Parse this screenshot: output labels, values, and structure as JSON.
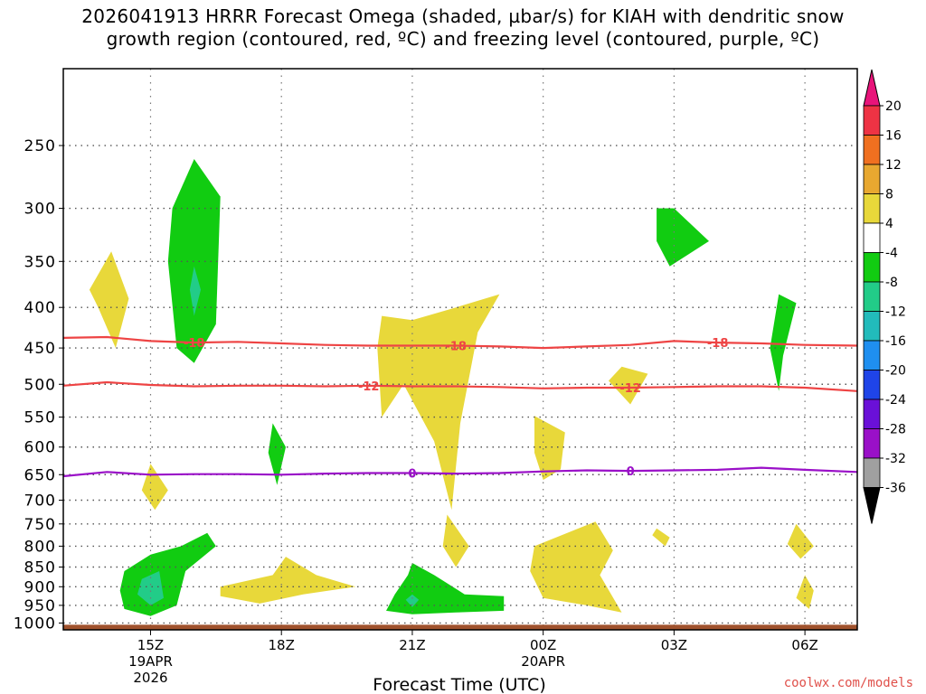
{
  "chart_data": {
    "type": "contour",
    "title_line1": "2026041913 HRRR Forecast Omega (shaded, µbar/s) for KIAH with dendritic snow",
    "title_line2": "growth region (contoured, red, ºC) and freezing level (contoured, purple, ºC)",
    "xlabel": "Forecast Time (UTC)",
    "x_ticks": [
      {
        "hour": 15,
        "label": "15Z",
        "sub": [
          "19APR",
          "2026"
        ]
      },
      {
        "hour": 18,
        "label": "18Z",
        "sub": []
      },
      {
        "hour": 21,
        "label": "21Z",
        "sub": []
      },
      {
        "hour": 24,
        "label": "00Z",
        "sub": [
          "20APR"
        ]
      },
      {
        "hour": 27,
        "label": "03Z",
        "sub": []
      },
      {
        "hour": 30,
        "label": "06Z",
        "sub": []
      }
    ],
    "xlim": [
      13,
      31.2
    ],
    "y_levels": [
      250,
      300,
      350,
      400,
      450,
      500,
      550,
      600,
      650,
      700,
      750,
      800,
      850,
      900,
      950,
      1000
    ],
    "ylim": [
      200,
      1020
    ],
    "colorbar_labels": [
      "20",
      "16",
      "12",
      "8",
      "4",
      "-4",
      "-8",
      "-12",
      "-16",
      "-20",
      "-24",
      "-28",
      "-32",
      "-36"
    ],
    "colorbar_colors": [
      "#ee3344",
      "#f07020",
      "#e8a830",
      "#e8d83a",
      "#ffffff",
      "#11cc11",
      "#22cc88",
      "#22bbbb",
      "#1f8ff0",
      "#1f44e8",
      "#6a10d8",
      "#9a10c8",
      "#a0a0a0"
    ],
    "colorbar_top_color": "#e8147a",
    "colorbar_bottom_color": "#000000",
    "temperature_contours": [
      {
        "label": "-18",
        "color": "#ee4444",
        "points": [
          [
            13,
            437
          ],
          [
            14,
            436
          ],
          [
            15,
            441
          ],
          [
            16,
            443
          ],
          [
            17,
            442
          ],
          [
            18,
            444
          ],
          [
            19,
            446
          ],
          [
            20,
            447
          ],
          [
            21,
            447
          ],
          [
            22,
            447
          ],
          [
            23,
            448
          ],
          [
            24,
            450
          ],
          [
            25,
            448
          ],
          [
            26,
            446
          ],
          [
            27,
            441
          ],
          [
            28,
            443
          ],
          [
            29,
            444
          ],
          [
            30,
            446
          ],
          [
            31.2,
            447
          ]
        ],
        "label_at": [
          [
            16,
            443
          ],
          [
            22,
            447
          ],
          [
            28,
            443
          ]
        ]
      },
      {
        "label": "-12",
        "color": "#ee4444",
        "points": [
          [
            13,
            502
          ],
          [
            14,
            497
          ],
          [
            15,
            501
          ],
          [
            16,
            503
          ],
          [
            17,
            502
          ],
          [
            18,
            502
          ],
          [
            19,
            503
          ],
          [
            20,
            502
          ],
          [
            21,
            503
          ],
          [
            22,
            503
          ],
          [
            23,
            504
          ],
          [
            24,
            506
          ],
          [
            25,
            505
          ],
          [
            26,
            505
          ],
          [
            27,
            504
          ],
          [
            28,
            503
          ],
          [
            29,
            503
          ],
          [
            30,
            505
          ],
          [
            31.2,
            510
          ]
        ],
        "label_at": [
          [
            20,
            502
          ],
          [
            26,
            505
          ]
        ]
      },
      {
        "label": "0",
        "color": "#9a10c8",
        "points": [
          [
            13,
            653
          ],
          [
            14,
            645
          ],
          [
            15,
            650
          ],
          [
            16,
            649
          ],
          [
            17,
            649
          ],
          [
            18,
            650
          ],
          [
            19,
            648
          ],
          [
            20,
            647
          ],
          [
            21,
            647
          ],
          [
            22,
            648
          ],
          [
            23,
            647
          ],
          [
            24,
            644
          ],
          [
            25,
            642
          ],
          [
            26,
            643
          ],
          [
            27,
            642
          ],
          [
            28,
            641
          ],
          [
            29,
            637
          ],
          [
            30,
            641
          ],
          [
            31.2,
            645
          ]
        ],
        "label_at": [
          [
            21,
            647
          ],
          [
            26,
            643
          ]
        ]
      }
    ],
    "omega_regions": [
      {
        "value": 5,
        "color": "#e8d83a",
        "points": [
          [
            14.1,
            340
          ],
          [
            14.5,
            390
          ],
          [
            14.2,
            450
          ],
          [
            13.8,
            400
          ],
          [
            13.6,
            380
          ]
        ]
      },
      {
        "value": -6,
        "color": "#11cc11",
        "points": [
          [
            15.5,
            300
          ],
          [
            16.0,
            260
          ],
          [
            16.6,
            290
          ],
          [
            16.5,
            420
          ],
          [
            16.0,
            470
          ],
          [
            15.6,
            450
          ],
          [
            15.4,
            350
          ]
        ]
      },
      {
        "value": -10,
        "color": "#22cc88",
        "points": [
          [
            16.0,
            355
          ],
          [
            16.15,
            380
          ],
          [
            16.0,
            410
          ],
          [
            15.9,
            380
          ]
        ]
      },
      {
        "value": 5,
        "color": "#e8d83a",
        "points": [
          [
            15.0,
            630
          ],
          [
            15.4,
            680
          ],
          [
            15.1,
            720
          ],
          [
            14.8,
            680
          ]
        ]
      },
      {
        "value": -6,
        "color": "#11cc11",
        "points": [
          [
            17.8,
            560
          ],
          [
            18.1,
            600
          ],
          [
            17.9,
            670
          ],
          [
            17.7,
            610
          ]
        ]
      },
      {
        "value": 5,
        "color": "#e8d83a",
        "points": [
          [
            20.3,
            410
          ],
          [
            21.0,
            415
          ],
          [
            22.0,
            400
          ],
          [
            23.0,
            385
          ],
          [
            22.5,
            430
          ],
          [
            22.1,
            560
          ],
          [
            21.9,
            720
          ],
          [
            21.5,
            590
          ],
          [
            20.8,
            500
          ],
          [
            20.3,
            550
          ],
          [
            20.2,
            450
          ]
        ]
      },
      {
        "value": 5,
        "color": "#e8d83a",
        "points": [
          [
            21.8,
            730
          ],
          [
            22.3,
            800
          ],
          [
            22.0,
            850
          ],
          [
            21.7,
            800
          ]
        ]
      },
      {
        "value": 5,
        "color": "#e8d83a",
        "points": [
          [
            23.8,
            548
          ],
          [
            24.5,
            575
          ],
          [
            24.4,
            640
          ],
          [
            24.0,
            660
          ],
          [
            23.8,
            610
          ]
        ]
      },
      {
        "value": 5,
        "color": "#e8d83a",
        "points": [
          [
            25.8,
            475
          ],
          [
            26.4,
            485
          ],
          [
            26.0,
            530
          ],
          [
            25.5,
            495
          ]
        ]
      },
      {
        "value": -6,
        "color": "#11cc11",
        "points": [
          [
            26.6,
            300
          ],
          [
            27.0,
            300
          ],
          [
            27.8,
            330
          ],
          [
            26.9,
            355
          ],
          [
            26.6,
            330
          ]
        ]
      },
      {
        "value": -6,
        "color": "#11cc11",
        "points": [
          [
            29.4,
            385
          ],
          [
            29.8,
            395
          ],
          [
            29.5,
            460
          ],
          [
            29.4,
            510
          ],
          [
            29.2,
            450
          ]
        ]
      },
      {
        "value": 5,
        "color": "#e8d83a",
        "points": [
          [
            26.6,
            760
          ],
          [
            26.9,
            780
          ],
          [
            26.8,
            800
          ],
          [
            26.5,
            775
          ]
        ]
      },
      {
        "value": 5,
        "color": "#e8d83a",
        "points": [
          [
            29.8,
            750
          ],
          [
            30.2,
            800
          ],
          [
            29.9,
            830
          ],
          [
            29.6,
            795
          ]
        ]
      },
      {
        "value": 5,
        "color": "#e8d83a",
        "points": [
          [
            23.8,
            800
          ],
          [
            25.2,
            745
          ],
          [
            25.6,
            810
          ],
          [
            25.3,
            870
          ],
          [
            25.8,
            970
          ],
          [
            25.0,
            950
          ],
          [
            24.0,
            930
          ],
          [
            23.7,
            860
          ]
        ]
      },
      {
        "value": 5,
        "color": "#e8d83a",
        "points": [
          [
            16.6,
            900
          ],
          [
            17.8,
            870
          ],
          [
            18.1,
            825
          ],
          [
            18.8,
            870
          ],
          [
            19.7,
            900
          ],
          [
            18.5,
            920
          ],
          [
            17.5,
            945
          ],
          [
            16.6,
            925
          ]
        ]
      },
      {
        "value": 5,
        "color": "#e8d83a",
        "points": [
          [
            30.0,
            870
          ],
          [
            30.2,
            910
          ],
          [
            30.1,
            960
          ],
          [
            29.8,
            930
          ]
        ]
      },
      {
        "value": -6,
        "color": "#11cc11",
        "points": [
          [
            14.4,
            860
          ],
          [
            15.0,
            820
          ],
          [
            15.7,
            800
          ],
          [
            16.3,
            770
          ],
          [
            16.5,
            800
          ],
          [
            15.8,
            860
          ],
          [
            15.6,
            950
          ],
          [
            15.0,
            980
          ],
          [
            14.4,
            960
          ],
          [
            14.3,
            910
          ]
        ]
      },
      {
        "value": -10,
        "color": "#22cc88",
        "points": [
          [
            14.8,
            880
          ],
          [
            15.2,
            860
          ],
          [
            15.3,
            930
          ],
          [
            15.0,
            950
          ],
          [
            14.7,
            920
          ]
        ]
      },
      {
        "value": -6,
        "color": "#11cc11",
        "points": [
          [
            20.6,
            920
          ],
          [
            20.9,
            870
          ],
          [
            21.0,
            840
          ],
          [
            21.5,
            870
          ],
          [
            22.2,
            920
          ],
          [
            23.1,
            925
          ],
          [
            23.1,
            965
          ],
          [
            22.0,
            970
          ],
          [
            21.0,
            975
          ],
          [
            20.4,
            965
          ]
        ]
      },
      {
        "value": -10,
        "color": "#22cc88",
        "points": [
          [
            21.0,
            920
          ],
          [
            21.15,
            935
          ],
          [
            21.0,
            955
          ],
          [
            20.85,
            935
          ]
        ]
      }
    ],
    "ground_color": "#a0522d",
    "credit": "coolwx.com/models"
  }
}
